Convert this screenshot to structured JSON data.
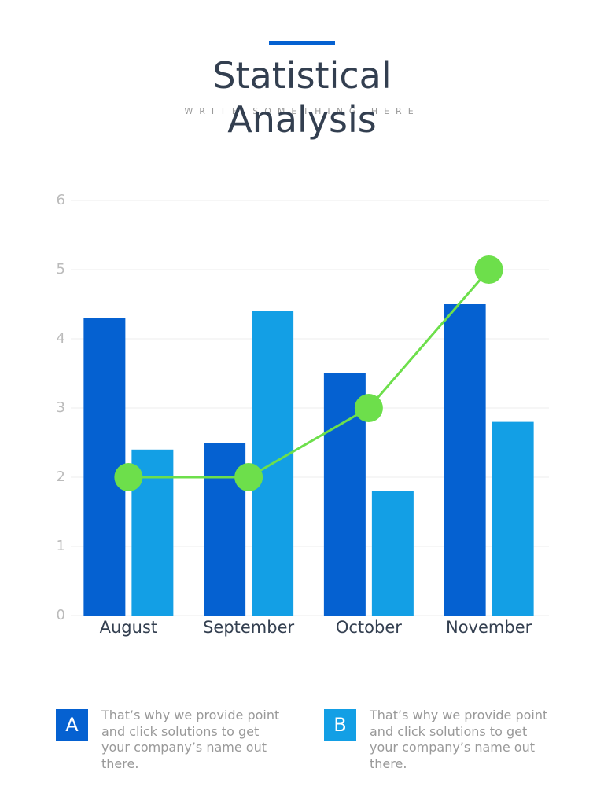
{
  "title": "Statistical Analysis",
  "subtitle": "WRITE SOMETHING HERE",
  "chart_data": {
    "type": "bar",
    "categories": [
      "August",
      "September",
      "October",
      "November"
    ],
    "series": [
      {
        "name": "A",
        "color": "#0561d1",
        "values": [
          4.3,
          2.5,
          3.5,
          4.5
        ],
        "description": "That’s why we provide point and click solutions to get your company’s name out there."
      },
      {
        "name": "B",
        "color": "#139fe5",
        "values": [
          2.4,
          4.4,
          1.8,
          2.8
        ],
        "description": "That’s why we provide point and click solutions to get your company’s name out there."
      },
      {
        "type": "line",
        "color": "#6ddf4b",
        "values": [
          2,
          2,
          3,
          5
        ]
      }
    ],
    "ylim": [
      0,
      6
    ],
    "yticks": [
      0,
      1,
      2,
      3,
      4,
      5,
      6
    ],
    "grid": true
  }
}
